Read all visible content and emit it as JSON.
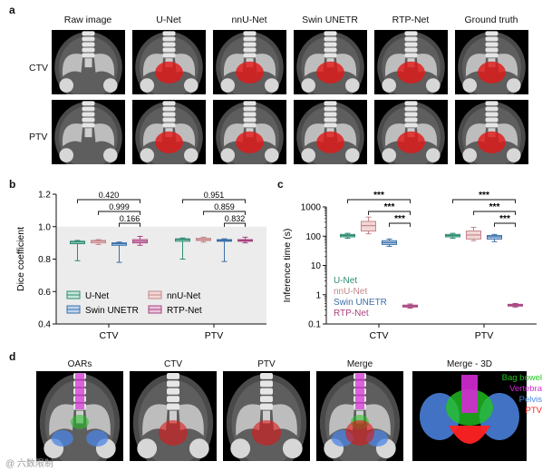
{
  "panel_a": {
    "label": "a",
    "columns": [
      "Raw image",
      "U-Net",
      "nnU-Net",
      "Swin UNETR",
      "RTP-Net",
      "Ground truth"
    ],
    "rows": [
      "CTV",
      "PTV"
    ],
    "overlay_color": "#e01818"
  },
  "panel_b": {
    "label": "b",
    "chart_data": {
      "type": "box",
      "ylabel": "Dice coefficient",
      "ylim": [
        0.4,
        1.2
      ],
      "yticks": [
        "0.4",
        "0.6",
        "0.8",
        "1.0",
        "1.2"
      ],
      "categories": [
        "CTV",
        "PTV"
      ],
      "series": [
        {
          "name": "U-Net",
          "color": "#2e8b72",
          "fill": "#c5e6d8",
          "boxes": [
            {
              "min": 0.79,
              "q1": 0.895,
              "median": 0.905,
              "q3": 0.91,
              "max": 0.915
            },
            {
              "min": 0.8,
              "q1": 0.91,
              "median": 0.92,
              "q3": 0.925,
              "max": 0.93
            }
          ]
        },
        {
          "name": "nnU-Net",
          "color": "#c4868a",
          "fill": "#f1d8d6",
          "boxes": [
            {
              "min": 0.89,
              "q1": 0.9,
              "median": 0.91,
              "q3": 0.915,
              "max": 0.92
            },
            {
              "min": 0.905,
              "q1": 0.915,
              "median": 0.92,
              "q3": 0.928,
              "max": 0.935
            }
          ]
        },
        {
          "name": "Swin UNETR",
          "color": "#3c6fa8",
          "fill": "#bcd4ee",
          "boxes": [
            {
              "min": 0.78,
              "q1": 0.885,
              "median": 0.895,
              "q3": 0.9,
              "max": 0.905
            },
            {
              "min": 0.785,
              "q1": 0.91,
              "median": 0.915,
              "q3": 0.92,
              "max": 0.925
            }
          ]
        },
        {
          "name": "RTP-Net",
          "color": "#a8437f",
          "fill": "#e9c3dc",
          "boxes": [
            {
              "min": 0.885,
              "q1": 0.9,
              "median": 0.91,
              "q3": 0.92,
              "max": 0.94
            },
            {
              "min": 0.9,
              "q1": 0.91,
              "median": 0.915,
              "q3": 0.92,
              "max": 0.935
            }
          ]
        }
      ],
      "significance": [
        {
          "category": "CTV",
          "from": 0,
          "to": 3,
          "label": "0.420"
        },
        {
          "category": "CTV",
          "from": 1,
          "to": 3,
          "label": "0.999"
        },
        {
          "category": "CTV",
          "from": 2,
          "to": 3,
          "label": "0.166"
        },
        {
          "category": "PTV",
          "from": 0,
          "to": 3,
          "label": "0.951"
        },
        {
          "category": "PTV",
          "from": 1,
          "to": 3,
          "label": "0.859"
        },
        {
          "category": "PTV",
          "from": 2,
          "to": 3,
          "label": "0.832"
        }
      ],
      "legend_position": "bottom"
    }
  },
  "panel_c": {
    "label": "c",
    "chart_data": {
      "type": "box",
      "ylabel": "Inference time (s)",
      "yscale": "log",
      "ylim": [
        0.1,
        1000
      ],
      "yticks": [
        "0.1",
        "1",
        "10",
        "100",
        "1000"
      ],
      "categories": [
        "CTV",
        "PTV"
      ],
      "series": [
        {
          "name": "U-Net",
          "color": "#2e8b72",
          "fill": "#c5e6d8",
          "boxes": [
            {
              "min": 85,
              "q1": 95,
              "median": 105,
              "q3": 115,
              "max": 125
            },
            {
              "min": 85,
              "q1": 95,
              "median": 105,
              "q3": 115,
              "max": 125
            }
          ]
        },
        {
          "name": "nnU-Net",
          "color": "#c4868a",
          "fill": "#f1d8d6",
          "boxes": [
            {
              "min": 120,
              "q1": 150,
              "median": 230,
              "q3": 320,
              "max": 450
            },
            {
              "min": 70,
              "q1": 80,
              "median": 110,
              "q3": 150,
              "max": 200
            }
          ]
        },
        {
          "name": "Swin UNETR",
          "color": "#3c6fa8",
          "fill": "#bcd4ee",
          "boxes": [
            {
              "min": 45,
              "q1": 52,
              "median": 60,
              "q3": 70,
              "max": 80
            },
            {
              "min": 65,
              "q1": 80,
              "median": 95,
              "q3": 105,
              "max": 115
            }
          ]
        },
        {
          "name": "RTP-Net",
          "color": "#a8437f",
          "fill": "#e9c3dc",
          "boxes": [
            {
              "min": 0.35,
              "q1": 0.38,
              "median": 0.41,
              "q3": 0.44,
              "max": 0.48
            },
            {
              "min": 0.38,
              "q1": 0.41,
              "median": 0.44,
              "q3": 0.47,
              "max": 0.5
            }
          ]
        }
      ],
      "significance": [
        {
          "category": "CTV",
          "from": 0,
          "to": 3,
          "label": "***"
        },
        {
          "category": "CTV",
          "from": 1,
          "to": 3,
          "label": "***"
        },
        {
          "category": "CTV",
          "from": 2,
          "to": 3,
          "label": "***"
        },
        {
          "category": "PTV",
          "from": 0,
          "to": 3,
          "label": "***"
        },
        {
          "category": "PTV",
          "from": 1,
          "to": 3,
          "label": "***"
        },
        {
          "category": "PTV",
          "from": 2,
          "to": 3,
          "label": "***"
        }
      ],
      "legend_position": "left"
    }
  },
  "panel_d": {
    "label": "d",
    "columns": [
      "OARs",
      "CTV",
      "PTV",
      "Merge",
      "Merge - 3D"
    ],
    "legend_3d": [
      {
        "name": "Bag bowel",
        "color": "#22c322"
      },
      {
        "name": "Vertebra",
        "color": "#d62ad6"
      },
      {
        "name": "Pelvis",
        "color": "#4c86e6"
      },
      {
        "name": "PTV",
        "color": "#ff2222"
      }
    ]
  },
  "watermark": "@ 六数限制"
}
